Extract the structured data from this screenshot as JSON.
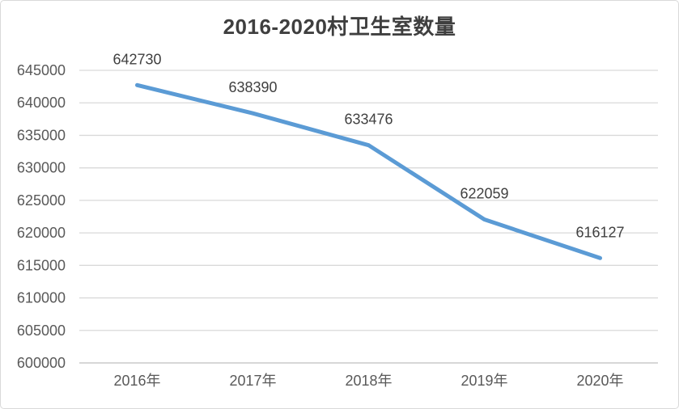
{
  "chart_data": {
    "type": "line",
    "title": "2016-2020村卫生室数量",
    "categories": [
      "2016年",
      "2017年",
      "2018年",
      "2019年",
      "2020年"
    ],
    "series": [
      {
        "name": "村卫生室数量",
        "values": [
          642730,
          638390,
          633476,
          622059,
          616127
        ]
      }
    ],
    "data_labels": [
      "642730",
      "638390",
      "633476",
      "622059",
      "616127"
    ],
    "xlabel": "",
    "ylabel": "",
    "ylim": [
      600000,
      645000
    ],
    "ytick_step": 5000,
    "ytick_labels": [
      "645000",
      "640000",
      "635000",
      "630000",
      "625000",
      "620000",
      "615000",
      "610000",
      "605000",
      "600000"
    ],
    "grid": true,
    "legend_position": "none",
    "colors": {
      "line": "#5B9BD5",
      "gridline": "#D9D9D9",
      "axis_line": "#BFBFBF",
      "title_text": "#3F3F3F",
      "axis_text": "#595959",
      "label_text": "#404040",
      "frame_border": "#D9D9D9",
      "background": "#FFFFFF"
    }
  }
}
